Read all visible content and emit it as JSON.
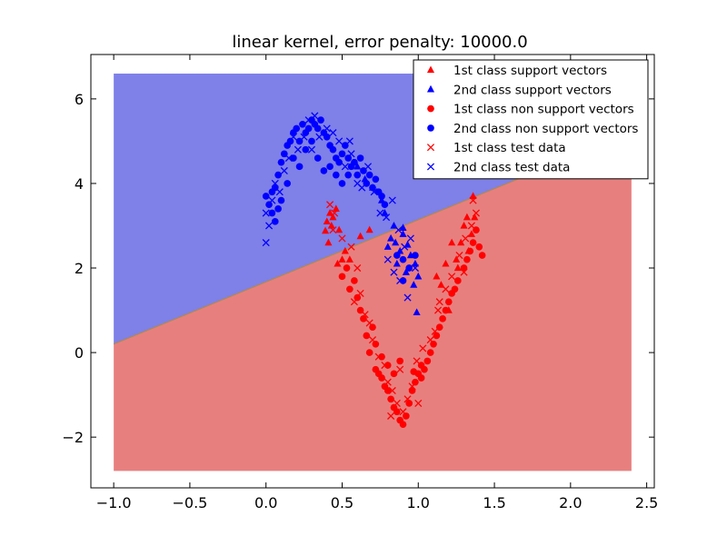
{
  "chart_data": {
    "type": "scatter",
    "title": "linear kernel, error penalty: 10000.0",
    "xlabel": "",
    "ylabel": "",
    "xlim": [
      -1.15,
      2.55
    ],
    "ylim": [
      -3.2,
      7.05
    ],
    "x_ticks": [
      -1.0,
      -0.5,
      0.0,
      0.5,
      1.0,
      1.5,
      2.0,
      2.5
    ],
    "x_tick_labels": [
      "−1.0",
      "−0.5",
      "0.0",
      "0.5",
      "1.0",
      "1.5",
      "2.0",
      "2.5"
    ],
    "y_ticks": [
      -2,
      0,
      2,
      4,
      6
    ],
    "y_tick_labels": [
      "−2",
      "0",
      "2",
      "4",
      "6"
    ],
    "grid": false,
    "legend_position": "top-right",
    "background_regions": {
      "x_range": [
        -1.0,
        2.4
      ],
      "y_range": [
        -2.8,
        6.6
      ],
      "decision_boundary": {
        "points": [
          [
            -1.0,
            0.2
          ],
          [
            2.4,
            5.2
          ]
        ]
      },
      "upper_region": {
        "label": "2nd class",
        "color": "#7f80e8"
      },
      "lower_region": {
        "label": "1st class",
        "color": "#e87f7f"
      }
    },
    "colors": {
      "class1": "#ff0000",
      "class2": "#0000ff"
    },
    "series": [
      {
        "name": "1st class support vectors",
        "marker": "triangle",
        "color": "#ff0000",
        "points": [
          [
            0.39,
            2.88
          ],
          [
            0.4,
            3.1
          ],
          [
            0.42,
            3.3
          ],
          [
            0.44,
            3.2
          ],
          [
            0.46,
            3.4
          ],
          [
            0.43,
            3.0
          ],
          [
            0.41,
            2.6
          ],
          [
            0.48,
            2.9
          ],
          [
            0.52,
            2.4
          ],
          [
            0.55,
            2.2
          ],
          [
            0.62,
            2.75
          ],
          [
            0.68,
            2.9
          ],
          [
            0.5,
            2.2
          ],
          [
            0.47,
            2.1
          ],
          [
            1.25,
            2.2
          ],
          [
            1.28,
            2.6
          ],
          [
            1.3,
            3.0
          ],
          [
            1.32,
            3.2
          ],
          [
            1.35,
            2.8
          ],
          [
            1.37,
            3.2
          ],
          [
            1.36,
            3.7
          ],
          [
            1.12,
            1.8
          ],
          [
            1.15,
            1.6
          ],
          [
            1.2,
            1.0
          ],
          [
            1.26,
            2.0
          ],
          [
            1.22,
            2.6
          ],
          [
            1.18,
            2.1
          ],
          [
            1.33,
            2.4
          ]
        ]
      },
      {
        "name": "2nd class support vectors",
        "marker": "triangle",
        "color": "#0000ff",
        "points": [
          [
            0.82,
            2.7
          ],
          [
            0.85,
            2.6
          ],
          [
            0.88,
            2.4
          ],
          [
            0.9,
            2.8
          ],
          [
            0.93,
            2.55
          ],
          [
            0.95,
            2.3
          ],
          [
            0.8,
            2.5
          ],
          [
            0.98,
            2.1
          ],
          [
            1.0,
            1.8
          ],
          [
            0.97,
            1.6
          ],
          [
            0.86,
            2.1
          ],
          [
            0.92,
            1.9
          ],
          [
            0.99,
            0.95
          ],
          [
            0.76,
            3.6
          ],
          [
            0.7,
            3.9
          ],
          [
            0.65,
            4.1
          ],
          [
            0.6,
            4.4
          ],
          [
            0.78,
            3.3
          ],
          [
            0.84,
            3.0
          ],
          [
            0.9,
            2.95
          ]
        ]
      },
      {
        "name": "1st class non support vectors",
        "marker": "circle",
        "color": "#ff0000",
        "points": [
          [
            0.53,
            2.0
          ],
          [
            0.55,
            1.5
          ],
          [
            0.6,
            1.3
          ],
          [
            0.64,
            0.8
          ],
          [
            0.66,
            0.4
          ],
          [
            0.68,
            0.0
          ],
          [
            0.72,
            -0.4
          ],
          [
            0.74,
            -0.5
          ],
          [
            0.76,
            -0.6
          ],
          [
            0.78,
            -0.8
          ],
          [
            0.8,
            -0.9
          ],
          [
            0.82,
            -1.1
          ],
          [
            0.84,
            -1.3
          ],
          [
            0.86,
            -1.4
          ],
          [
            0.88,
            -1.6
          ],
          [
            0.9,
            -1.7
          ],
          [
            0.92,
            -1.5
          ],
          [
            0.94,
            -1.2
          ],
          [
            0.96,
            -0.9
          ],
          [
            0.98,
            -0.7
          ],
          [
            1.0,
            -0.5
          ],
          [
            1.02,
            -0.3
          ],
          [
            1.04,
            -0.4
          ],
          [
            1.06,
            -0.2
          ],
          [
            1.08,
            0.0
          ],
          [
            1.1,
            0.2
          ],
          [
            1.12,
            0.4
          ],
          [
            1.14,
            0.6
          ],
          [
            1.16,
            0.8
          ],
          [
            1.18,
            1.0
          ],
          [
            1.2,
            1.2
          ],
          [
            1.22,
            1.4
          ],
          [
            1.24,
            1.5
          ],
          [
            1.26,
            1.7
          ],
          [
            1.3,
            2.0
          ],
          [
            1.32,
            2.2
          ],
          [
            1.34,
            2.4
          ],
          [
            1.36,
            2.6
          ],
          [
            1.38,
            2.9
          ],
          [
            1.4,
            2.5
          ],
          [
            1.42,
            2.3
          ],
          [
            1.02,
            -0.6
          ],
          [
            0.97,
            -0.45
          ],
          [
            0.88,
            -0.2
          ],
          [
            0.84,
            -0.5
          ],
          [
            0.8,
            -0.3
          ],
          [
            0.76,
            -0.1
          ],
          [
            0.72,
            0.2
          ],
          [
            0.7,
            0.6
          ],
          [
            0.62,
            1.0
          ],
          [
            0.58,
            1.7
          ],
          [
            0.5,
            1.8
          ]
        ]
      },
      {
        "name": "2nd class non support vectors",
        "marker": "circle",
        "color": "#0000ff",
        "points": [
          [
            0.0,
            3.7
          ],
          [
            0.02,
            3.5
          ],
          [
            0.04,
            3.3
          ],
          [
            0.06,
            3.9
          ],
          [
            0.08,
            4.2
          ],
          [
            0.1,
            4.5
          ],
          [
            0.12,
            4.7
          ],
          [
            0.14,
            4.9
          ],
          [
            0.16,
            5.0
          ],
          [
            0.18,
            5.2
          ],
          [
            0.2,
            5.3
          ],
          [
            0.22,
            5.0
          ],
          [
            0.24,
            5.4
          ],
          [
            0.26,
            5.2
          ],
          [
            0.28,
            5.3
          ],
          [
            0.3,
            5.5
          ],
          [
            0.32,
            5.4
          ],
          [
            0.34,
            5.3
          ],
          [
            0.36,
            5.5
          ],
          [
            0.38,
            5.2
          ],
          [
            0.4,
            5.1
          ],
          [
            0.42,
            4.9
          ],
          [
            0.44,
            4.8
          ],
          [
            0.46,
            4.6
          ],
          [
            0.48,
            4.5
          ],
          [
            0.5,
            4.7
          ],
          [
            0.52,
            4.9
          ],
          [
            0.54,
            4.6
          ],
          [
            0.56,
            4.4
          ],
          [
            0.58,
            4.5
          ],
          [
            0.6,
            4.2
          ],
          [
            0.62,
            4.6
          ],
          [
            0.64,
            4.3
          ],
          [
            0.66,
            4.0
          ],
          [
            0.68,
            4.2
          ],
          [
            0.7,
            3.9
          ],
          [
            0.72,
            4.1
          ],
          [
            0.74,
            3.8
          ],
          [
            0.76,
            3.7
          ],
          [
            0.78,
            3.5
          ],
          [
            0.06,
            3.1
          ],
          [
            0.1,
            3.6
          ],
          [
            0.14,
            4.0
          ],
          [
            0.18,
            4.6
          ],
          [
            0.22,
            4.4
          ],
          [
            0.26,
            4.8
          ],
          [
            0.3,
            5.0
          ],
          [
            0.34,
            4.6
          ],
          [
            0.38,
            4.3
          ],
          [
            0.42,
            4.4
          ],
          [
            0.46,
            4.2
          ],
          [
            0.5,
            4.0
          ],
          [
            0.54,
            4.2
          ],
          [
            0.04,
            3.8
          ],
          [
            0.08,
            3.4
          ],
          [
            0.86,
            2.3
          ],
          [
            0.9,
            2.2
          ],
          [
            0.94,
            2.0
          ],
          [
            0.98,
            2.3
          ],
          [
            0.9,
            1.7
          ]
        ]
      },
      {
        "name": "1st class test data",
        "marker": "x",
        "color": "#ff0000",
        "points": [
          [
            0.42,
            3.5
          ],
          [
            0.45,
            3.3
          ],
          [
            0.44,
            2.9
          ],
          [
            0.5,
            2.7
          ],
          [
            0.56,
            2.5
          ],
          [
            0.6,
            2.0
          ],
          [
            0.62,
            1.4
          ],
          [
            0.65,
            0.9
          ],
          [
            0.68,
            0.7
          ],
          [
            0.7,
            0.3
          ],
          [
            0.74,
            -0.1
          ],
          [
            0.78,
            -0.3
          ],
          [
            0.8,
            -0.7
          ],
          [
            0.83,
            -0.9
          ],
          [
            0.86,
            -1.2
          ],
          [
            0.9,
            -1.4
          ],
          [
            0.93,
            -1.1
          ],
          [
            0.96,
            -0.8
          ],
          [
            0.99,
            -0.2
          ],
          [
            1.03,
            0.1
          ],
          [
            1.08,
            0.3
          ],
          [
            1.11,
            0.5
          ],
          [
            1.14,
            1.2
          ],
          [
            1.18,
            1.5
          ],
          [
            1.22,
            1.8
          ],
          [
            1.27,
            2.3
          ],
          [
            1.31,
            2.7
          ],
          [
            1.35,
            3.0
          ],
          [
            1.38,
            3.3
          ],
          [
            1.36,
            3.6
          ],
          [
            1.13,
            1.0
          ],
          [
            1.3,
            1.9
          ],
          [
            1.0,
            -1.2
          ],
          [
            0.88,
            -0.4
          ],
          [
            0.82,
            -1.5
          ],
          [
            0.58,
            1.2
          ]
        ]
      },
      {
        "name": "2nd class test data",
        "marker": "x",
        "color": "#0000ff",
        "points": [
          [
            0.0,
            2.6
          ],
          [
            0.02,
            3.0
          ],
          [
            0.04,
            3.6
          ],
          [
            0.06,
            4.0
          ],
          [
            0.09,
            3.8
          ],
          [
            0.12,
            4.3
          ],
          [
            0.15,
            4.6
          ],
          [
            0.18,
            5.1
          ],
          [
            0.21,
            4.8
          ],
          [
            0.25,
            5.1
          ],
          [
            0.28,
            5.5
          ],
          [
            0.32,
            5.6
          ],
          [
            0.35,
            5.1
          ],
          [
            0.4,
            5.3
          ],
          [
            0.44,
            5.2
          ],
          [
            0.48,
            5.0
          ],
          [
            0.52,
            4.4
          ],
          [
            0.56,
            4.7
          ],
          [
            0.6,
            4.0
          ],
          [
            0.63,
            3.9
          ],
          [
            0.67,
            4.4
          ],
          [
            0.71,
            3.8
          ],
          [
            0.75,
            3.3
          ],
          [
            0.79,
            3.2
          ],
          [
            0.83,
            3.6
          ],
          [
            0.87,
            2.9
          ],
          [
            0.91,
            2.5
          ],
          [
            0.95,
            2.7
          ],
          [
            0.98,
            2.0
          ],
          [
            0.84,
            1.9
          ],
          [
            0.88,
            1.7
          ],
          [
            0.93,
            1.3
          ],
          [
            0.8,
            2.2
          ],
          [
            0.0,
            3.3
          ],
          [
            0.3,
            4.8
          ],
          [
            0.55,
            5.0
          ]
        ]
      }
    ]
  }
}
